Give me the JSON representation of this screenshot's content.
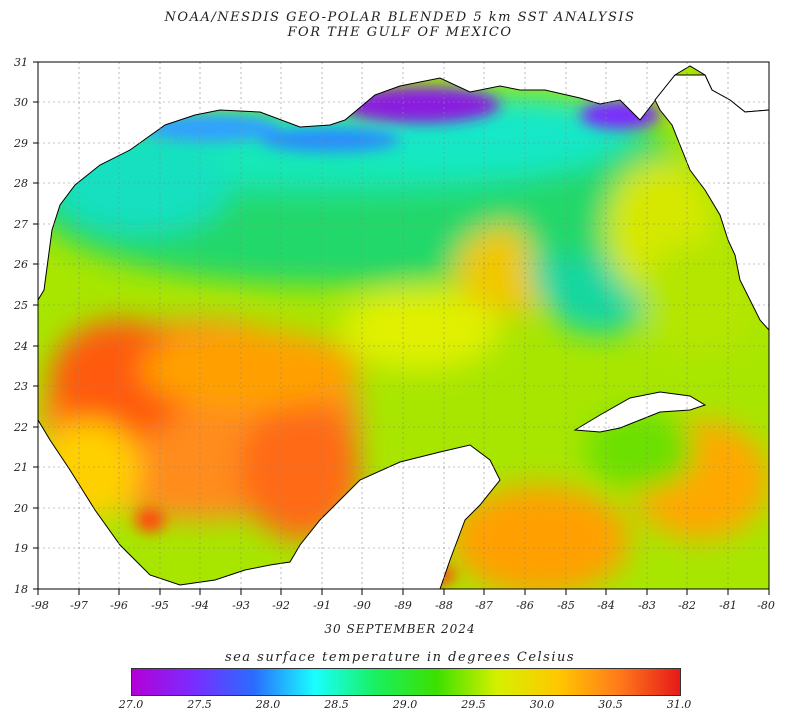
{
  "header": {
    "title_line1": "NOAA/NESDIS GEO-POLAR BLENDED 5 km SST ANALYSIS",
    "title_line2": "FOR THE GULF OF MEXICO"
  },
  "map": {
    "lat_ticks": [
      "31",
      "30",
      "29",
      "28",
      "27",
      "26",
      "25",
      "24",
      "23",
      "22",
      "21",
      "20",
      "19",
      "18"
    ],
    "lon_ticks": [
      "-98",
      "-97",
      "-96",
      "-95",
      "-94",
      "-93",
      "-92",
      "-91",
      "-90",
      "-89",
      "-88",
      "-87",
      "-86",
      "-85",
      "-84",
      "-83",
      "-82",
      "-81",
      "-80"
    ],
    "land_color": "#ffffff",
    "coastline_color": "#000000"
  },
  "date": "30 SEPTEMBER 2024",
  "colorbar": {
    "title": "sea surface temperature in degrees Celsius",
    "ticks": [
      "27.0",
      "27.5",
      "28.0",
      "28.5",
      "29.0",
      "29.5",
      "30.0",
      "30.5",
      "31.0"
    ],
    "colors": [
      "#b300d6",
      "#7a2cff",
      "#2a6cff",
      "#19ffff",
      "#19f060",
      "#3ce000",
      "#d6f000",
      "#ffc800",
      "#ff7a1a",
      "#e61a1a"
    ]
  }
}
